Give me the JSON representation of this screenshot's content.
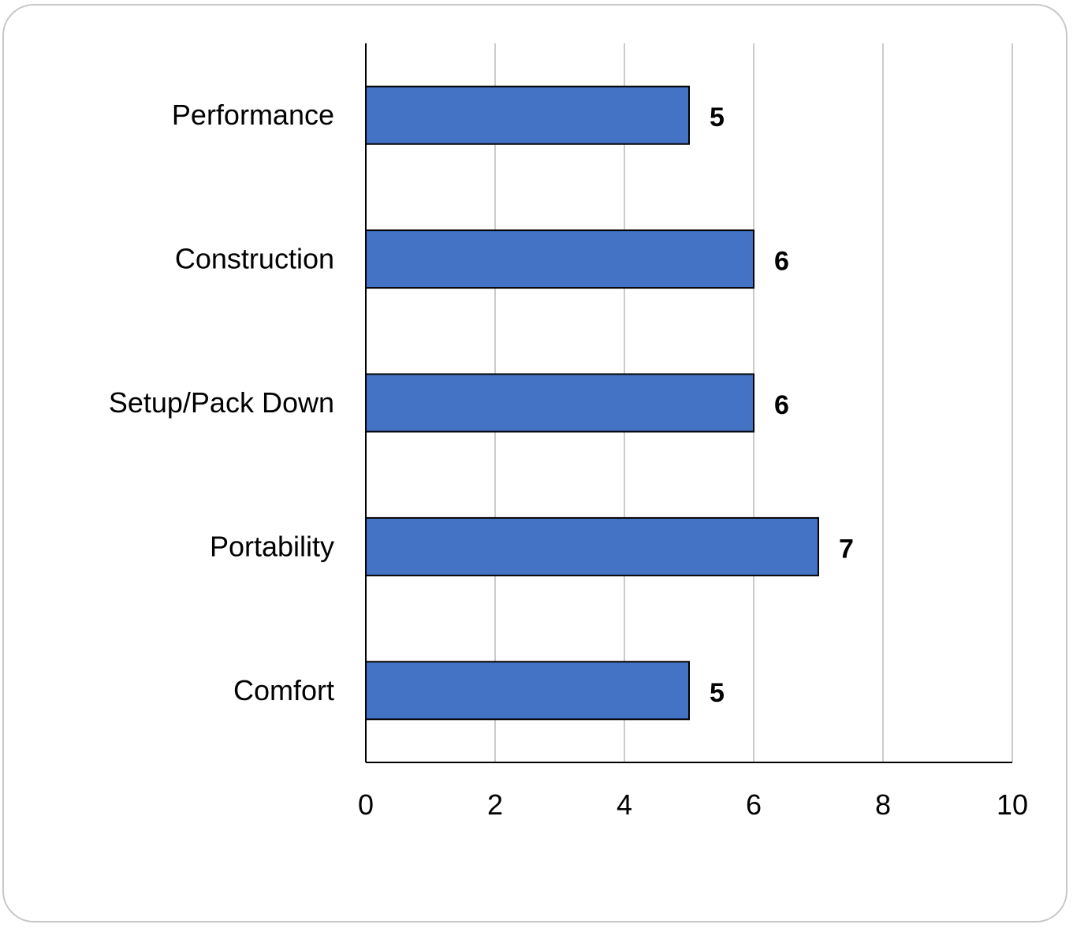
{
  "chart_data": {
    "type": "bar",
    "orientation": "horizontal",
    "title": "",
    "xlabel": "",
    "ylabel": "",
    "categories": [
      "Performance",
      "Construction",
      "Setup/Pack Down",
      "Portability",
      "Comfort"
    ],
    "values": [
      5,
      6,
      6,
      7,
      5
    ],
    "data_labels": [
      "5",
      "6",
      "6",
      "7",
      "5"
    ],
    "xlim": [
      0,
      10
    ],
    "x_ticks": [
      0,
      2,
      4,
      6,
      8,
      10
    ],
    "x_tick_labels": [
      "0",
      "2",
      "4",
      "6",
      "8",
      "10"
    ],
    "grid": "vertical",
    "legend": "none",
    "bar_color": "#4472C4",
    "bar_edge_color": "#000000",
    "grid_color": "#cccccc"
  }
}
